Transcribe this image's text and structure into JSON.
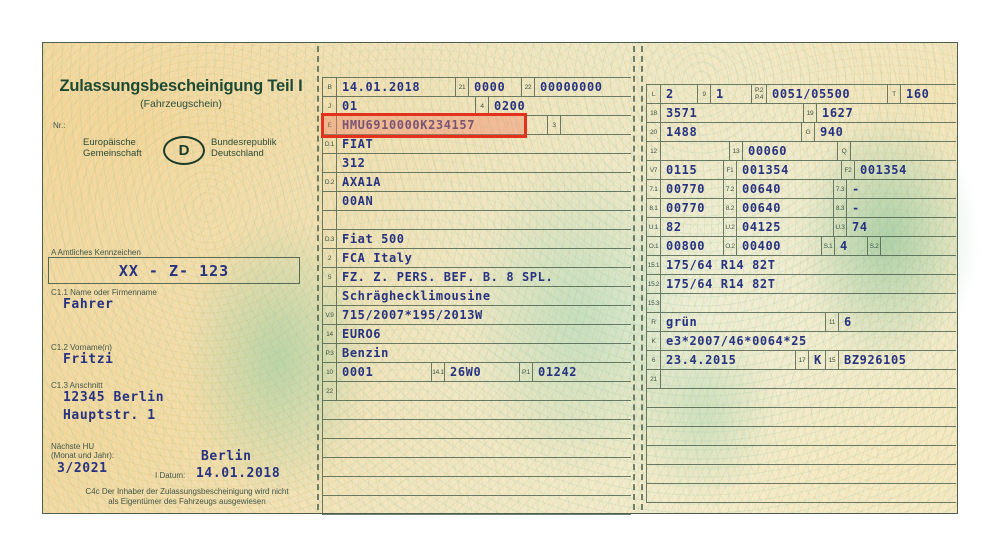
{
  "colors": {
    "value_ink": "#273380",
    "highlight_border": "#e2321e",
    "highlight_fill": "rgba(240,130,100,0.42)",
    "title_green": "#1d4a34"
  },
  "header": {
    "title": "Zulassungsbescheinigung Teil I",
    "subtitle": "(Fahrzeugschein)",
    "nr_label": "Nr.:",
    "eu_left": "Europäische\nGemeinschaft",
    "country_letter": "D",
    "eu_right": "Bundesrepublik\nDeutschland"
  },
  "owner": {
    "plate_label": "A Amtliches Kennzeichen",
    "plate_value": "XX - Z- 123",
    "name_label": "C1.1 Name oder Firmenname",
    "name_value": "Fahrer",
    "firstname_label": "C1.2 Vorname(n)",
    "firstname_value": "Fritzi",
    "address_label": "C1.3 Anschnitt",
    "address_line1": "12345 Berlin",
    "address_line2": "Hauptstr. 1"
  },
  "inspection": {
    "hu_label_line1": "Nächste HU",
    "hu_label_line2": "(Monat und Jahr):",
    "hu_value": "3/2021",
    "city": "Berlin",
    "date_label": "I Datum:",
    "date_value": "14.01.2018",
    "c4c_line1": "C4c Der Inhaber der Zulassungsbescheinigung wird nicht",
    "c4c_line2": "als Eigentümer des Fahrzeugs ausgewiesen"
  },
  "highlight_field": {
    "label": "E",
    "value": "HMU6910000K234157"
  },
  "middle_column": {
    "rows": [
      {
        "cells": [
          [
            "l",
            "B",
            14
          ],
          [
            "v",
            "14.01.2018",
            118
          ],
          [
            "l",
            "21",
            14
          ],
          [
            "v",
            "0000",
            52
          ],
          [
            "l",
            "22",
            14
          ],
          [
            "v",
            "00000000",
            0
          ]
        ]
      },
      {
        "cells": [
          [
            "l",
            "J",
            14
          ],
          [
            "v",
            "01",
            138
          ],
          [
            "l",
            "4",
            14
          ],
          [
            "v",
            "0200",
            0
          ]
        ]
      },
      {
        "cells": [
          [
            "l",
            "E",
            14
          ],
          [
            "v",
            "HMU6910000K234157",
            182
          ],
          [
            "g",
            "",
            28
          ],
          [
            "l",
            "3",
            14
          ],
          [
            "g",
            "",
            0
          ]
        ]
      },
      {
        "cells": [
          [
            "l",
            "D.1",
            14
          ],
          [
            "v",
            "FIAT",
            0
          ]
        ]
      },
      {
        "cells": [
          [
            "l",
            "",
            14
          ],
          [
            "v",
            "312",
            0
          ]
        ]
      },
      {
        "cells": [
          [
            "l",
            "D.2",
            14
          ],
          [
            "v",
            "AXA1A",
            0
          ]
        ]
      },
      {
        "cells": [
          [
            "l",
            "",
            14
          ],
          [
            "v",
            "00AN",
            0
          ]
        ]
      },
      {
        "cells": [
          [
            "l",
            "",
            14
          ],
          [
            "g",
            "",
            0
          ]
        ]
      },
      {
        "cells": [
          [
            "l",
            "D.3",
            14
          ],
          [
            "v",
            "Fiat 500",
            0
          ]
        ]
      },
      {
        "cells": [
          [
            "l",
            "2",
            14
          ],
          [
            "v",
            "FCA Italy",
            0
          ]
        ]
      },
      {
        "cells": [
          [
            "l",
            "5",
            14
          ],
          [
            "v",
            "FZ. Z. PERS. BEF. B. 8 SPL.",
            0
          ]
        ]
      },
      {
        "cells": [
          [
            "l",
            "",
            14
          ],
          [
            "v",
            "Schräghecklimousine",
            0
          ]
        ]
      },
      {
        "cells": [
          [
            "l",
            "V.9",
            14
          ],
          [
            "v",
            "715/2007*195/2013W",
            0
          ]
        ]
      },
      {
        "cells": [
          [
            "l",
            "14",
            14
          ],
          [
            "v",
            "EURO6",
            0
          ]
        ]
      },
      {
        "cells": [
          [
            "l",
            "P.3",
            14
          ],
          [
            "v",
            "Benzin",
            0
          ]
        ]
      },
      {
        "cells": [
          [
            "l",
            "10",
            14
          ],
          [
            "v",
            "0001",
            94
          ],
          [
            "l",
            "14.1",
            14
          ],
          [
            "v",
            "26W0",
            74
          ],
          [
            "l",
            "P.1",
            14
          ],
          [
            "v",
            "01242",
            0
          ]
        ]
      },
      {
        "cells": [
          [
            "l",
            "22",
            14
          ],
          [
            "g",
            "",
            0
          ]
        ]
      },
      {
        "cells": []
      },
      {
        "cells": []
      },
      {
        "cells": []
      },
      {
        "cells": []
      },
      {
        "cells": []
      },
      {
        "cells": []
      }
    ]
  },
  "right_column": {
    "rows": [
      {
        "cells": [
          [
            "l",
            "L",
            14
          ],
          [
            "v",
            "2",
            36
          ],
          [
            "l",
            "9",
            14
          ],
          [
            "v",
            "1",
            40
          ],
          [
            "l2",
            "P.2\nP.4",
            16
          ],
          [
            "v",
            "0051/05500",
            120
          ],
          [
            "l",
            "T",
            14
          ],
          [
            "v",
            "160",
            0
          ]
        ]
      },
      {
        "cells": [
          [
            "l",
            "18",
            14
          ],
          [
            "v",
            "3571",
            142
          ],
          [
            "l",
            "19",
            14
          ],
          [
            "v",
            "1627",
            0
          ]
        ]
      },
      {
        "cells": [
          [
            "l",
            "20",
            14
          ],
          [
            "v",
            "1488",
            140
          ],
          [
            "l",
            "G",
            14
          ],
          [
            "v",
            "940",
            0
          ]
        ]
      },
      {
        "cells": [
          [
            "l",
            "12",
            14
          ],
          [
            "g",
            "",
            68
          ],
          [
            "l",
            "13",
            14
          ],
          [
            "v",
            "00060",
            94
          ],
          [
            "l",
            "Q",
            14
          ],
          [
            "g",
            "",
            0
          ]
        ]
      },
      {
        "cells": [
          [
            "l",
            "V7",
            14
          ],
          [
            "v",
            "0115",
            62
          ],
          [
            "l",
            "F1",
            14
          ],
          [
            "v",
            "001354",
            104
          ],
          [
            "l",
            "F2",
            14
          ],
          [
            "v",
            "001354",
            0
          ]
        ]
      },
      {
        "cells": [
          [
            "l",
            "7.1",
            14
          ],
          [
            "v",
            "00770",
            62
          ],
          [
            "l",
            "7.2",
            14
          ],
          [
            "v",
            "00640",
            96
          ],
          [
            "l",
            "7.3",
            14
          ],
          [
            "v",
            "-",
            0
          ]
        ]
      },
      {
        "cells": [
          [
            "l",
            "8.1",
            14
          ],
          [
            "v",
            "00770",
            62
          ],
          [
            "l",
            "8.2",
            14
          ],
          [
            "v",
            "00640",
            96
          ],
          [
            "l",
            "8.3",
            14
          ],
          [
            "v",
            "-",
            0
          ]
        ]
      },
      {
        "cells": [
          [
            "l",
            "U.1",
            14
          ],
          [
            "v",
            "82",
            62
          ],
          [
            "l",
            "U.2",
            14
          ],
          [
            "v",
            "04125",
            96
          ],
          [
            "l",
            "U.3",
            14
          ],
          [
            "v",
            "74",
            0
          ]
        ]
      },
      {
        "cells": [
          [
            "l",
            "O.1",
            14
          ],
          [
            "v",
            "00800",
            62
          ],
          [
            "l",
            "O.2",
            14
          ],
          [
            "v",
            "00400",
            84
          ],
          [
            "l",
            "S.1",
            14
          ],
          [
            "v",
            "4",
            32
          ],
          [
            "l",
            "S.2",
            14
          ],
          [
            "g",
            "",
            0
          ]
        ]
      },
      {
        "cells": [
          [
            "l",
            "15.1",
            14
          ],
          [
            "v",
            "175/64 R14 82T",
            0
          ]
        ]
      },
      {
        "cells": [
          [
            "l",
            "15.2",
            14
          ],
          [
            "v",
            "175/64 R14 82T",
            0
          ]
        ]
      },
      {
        "cells": [
          [
            "l",
            "15.3",
            14
          ],
          [
            "g",
            "",
            0
          ]
        ]
      },
      {
        "cells": [
          [
            "l",
            "R",
            14
          ],
          [
            "v",
            "grün",
            164
          ],
          [
            "l",
            "11",
            14
          ],
          [
            "v",
            "6",
            0
          ]
        ]
      },
      {
        "cells": [
          [
            "l",
            "K",
            14
          ],
          [
            "v",
            "e3*2007/46*0064*25",
            0
          ]
        ]
      },
      {
        "cells": [
          [
            "l",
            "6",
            14
          ],
          [
            "v",
            "23.4.2015",
            134
          ],
          [
            "l",
            "17",
            14
          ],
          [
            "v",
            "K",
            16
          ],
          [
            "l",
            "15",
            14
          ],
          [
            "v",
            "BZ926105",
            0
          ]
        ]
      },
      {
        "cells": [
          [
            "l",
            "21",
            14
          ],
          [
            "g",
            "",
            0
          ]
        ]
      },
      {
        "cells": []
      },
      {
        "cells": []
      },
      {
        "cells": []
      },
      {
        "cells": []
      },
      {
        "cells": []
      },
      {
        "cells": []
      }
    ]
  }
}
